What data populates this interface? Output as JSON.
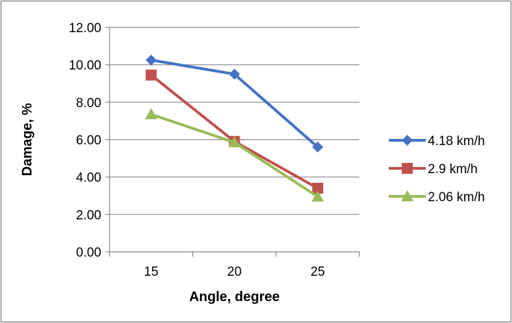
{
  "chart_data": {
    "type": "line",
    "categories": [
      "15",
      "20",
      "25"
    ],
    "series": [
      {
        "name": "4.18 km/h",
        "values": [
          10.25,
          9.5,
          5.6
        ],
        "color": "#4472C4",
        "marker": "diamond"
      },
      {
        "name": "2.9 km/h",
        "values": [
          9.45,
          5.9,
          3.4
        ],
        "color": "#C0504D",
        "marker": "square"
      },
      {
        "name": "2.06 km/h",
        "values": [
          7.35,
          5.85,
          2.95
        ],
        "color": "#9BBB59",
        "marker": "triangle"
      }
    ],
    "xlabel": "Angle, degree",
    "ylabel": "Damage, %",
    "ylim": [
      0,
      12
    ],
    "yticks": [
      "0.00",
      "2.00",
      "4.00",
      "6.00",
      "8.00",
      "10.00",
      "12.00"
    ],
    "grid": "horizontal",
    "legend": "right"
  }
}
